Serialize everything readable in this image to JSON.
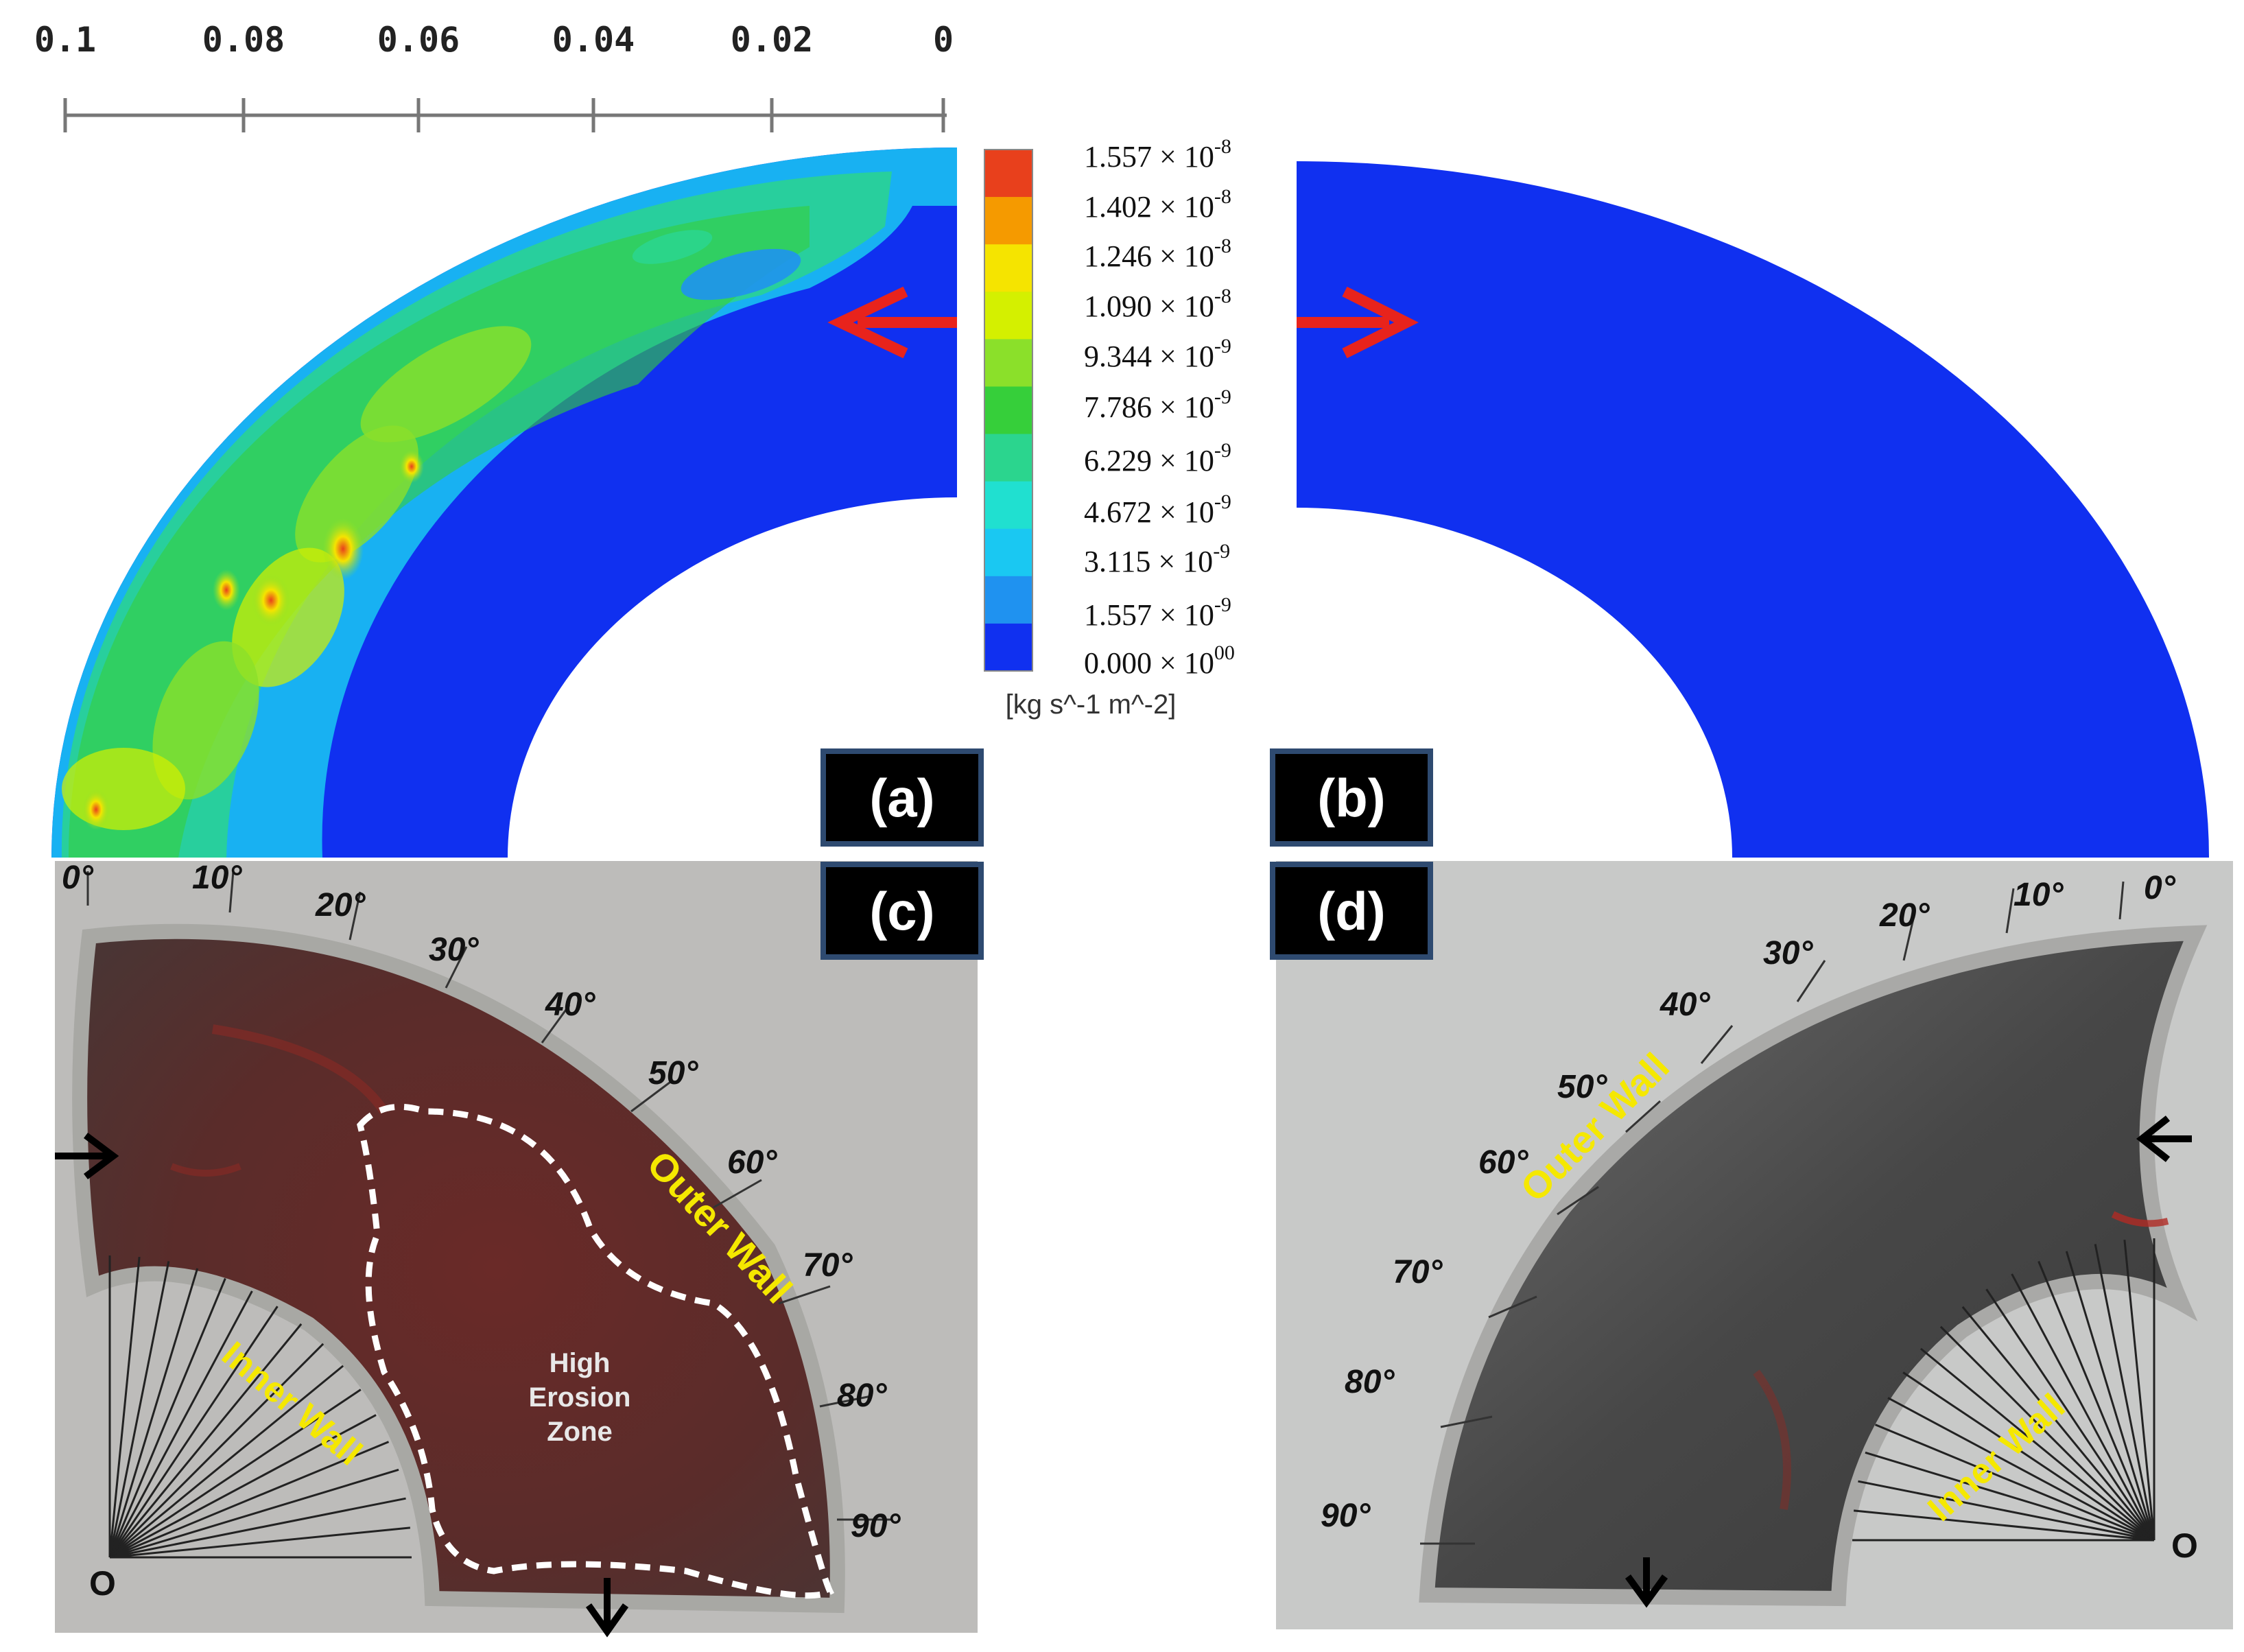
{
  "scale_ticks": [
    "0.1",
    "0.08",
    "0.06",
    "0.04",
    "0.02",
    "0"
  ],
  "colorbar": {
    "unit": "[kg s^-1 m^-2]",
    "labels": [
      {
        "mantissa": "1.557",
        "exp": "-8"
      },
      {
        "mantissa": "1.402",
        "exp": "-8"
      },
      {
        "mantissa": "1.246",
        "exp": "-8"
      },
      {
        "mantissa": "1.090",
        "exp": "-8"
      },
      {
        "mantissa": "9.344",
        "exp": "-9"
      },
      {
        "mantissa": "7.786",
        "exp": "-9"
      },
      {
        "mantissa": "6.229",
        "exp": "-9"
      },
      {
        "mantissa": "4.672",
        "exp": "-9"
      },
      {
        "mantissa": "3.115",
        "exp": "-9"
      },
      {
        "mantissa": "1.557",
        "exp": "-9"
      },
      {
        "mantissa": "0.000",
        "exp": "00"
      }
    ],
    "colors": [
      "#e8401c",
      "#f59a00",
      "#f5e400",
      "#d4f000",
      "#8be02a",
      "#36cf3a",
      "#2bd58e",
      "#20e0d0",
      "#1ac8f2",
      "#1f92f0",
      "#1030f0"
    ]
  },
  "panels": {
    "a": "(a)",
    "b": "(b)",
    "c": "(c)",
    "d": "(d)"
  },
  "photo_c": {
    "angles": [
      "0°",
      "10°",
      "20°",
      "30°",
      "40°",
      "50°",
      "60°",
      "70°",
      "80°",
      "90°"
    ],
    "outer_wall": "Outer Wall",
    "inner_wall": "Inner Wall",
    "zone_line1": "High",
    "zone_line2": "Erosion",
    "zone_line3": "Zone",
    "origin": "O"
  },
  "photo_d": {
    "angles": [
      "0°",
      "10°",
      "20°",
      "30°",
      "40°",
      "50°",
      "60°",
      "70°",
      "80°",
      "90°"
    ],
    "outer_wall": "Outer Wall",
    "inner_wall": "Inner Wall",
    "origin": "O"
  },
  "times_sign": "×",
  "base": "10"
}
